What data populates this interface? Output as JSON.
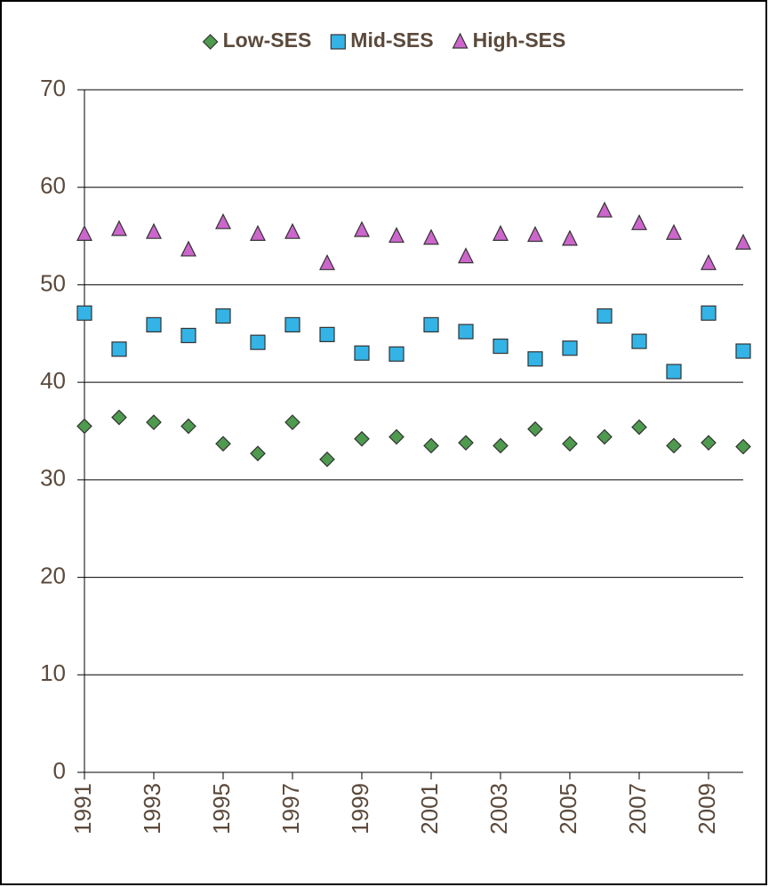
{
  "chart_data": {
    "type": "scatter",
    "x": [
      1991,
      1992,
      1993,
      1994,
      1995,
      1996,
      1997,
      1998,
      1999,
      2000,
      2001,
      2002,
      2003,
      2004,
      2005,
      2006,
      2007,
      2008,
      2009,
      2010
    ],
    "series": [
      {
        "name": "Low-SES",
        "color": "#4e9a4e",
        "marker": "diamond",
        "values": [
          35.5,
          36.4,
          35.9,
          35.5,
          33.7,
          32.7,
          35.9,
          32.1,
          34.2,
          34.4,
          33.5,
          33.8,
          33.5,
          35.2,
          33.7,
          34.4,
          35.4,
          33.5,
          33.8,
          33.4
        ]
      },
      {
        "name": "Mid-SES",
        "color": "#33b3e6",
        "marker": "square",
        "values": [
          47.1,
          43.4,
          45.9,
          44.8,
          46.8,
          44.1,
          45.9,
          44.9,
          43.0,
          42.9,
          45.9,
          45.2,
          43.7,
          42.4,
          43.5,
          46.8,
          44.2,
          41.1,
          47.1,
          43.2
        ]
      },
      {
        "name": "High-SES",
        "color": "#cc66cc",
        "marker": "triangle",
        "values": [
          55.2,
          55.7,
          55.4,
          53.6,
          56.4,
          55.2,
          55.4,
          52.2,
          55.6,
          55.0,
          54.8,
          52.9,
          55.2,
          55.1,
          54.7,
          57.6,
          56.3,
          55.3,
          52.2,
          54.3
        ]
      }
    ],
    "xlim": [
      1991,
      2010
    ],
    "xticks": [
      1991,
      1993,
      1995,
      1997,
      1999,
      2001,
      2003,
      2005,
      2007,
      2009
    ],
    "ylim": [
      0,
      70
    ],
    "yticks": [
      0,
      10,
      20,
      30,
      40,
      50,
      60,
      70
    ],
    "grid": true,
    "legend": "top"
  }
}
